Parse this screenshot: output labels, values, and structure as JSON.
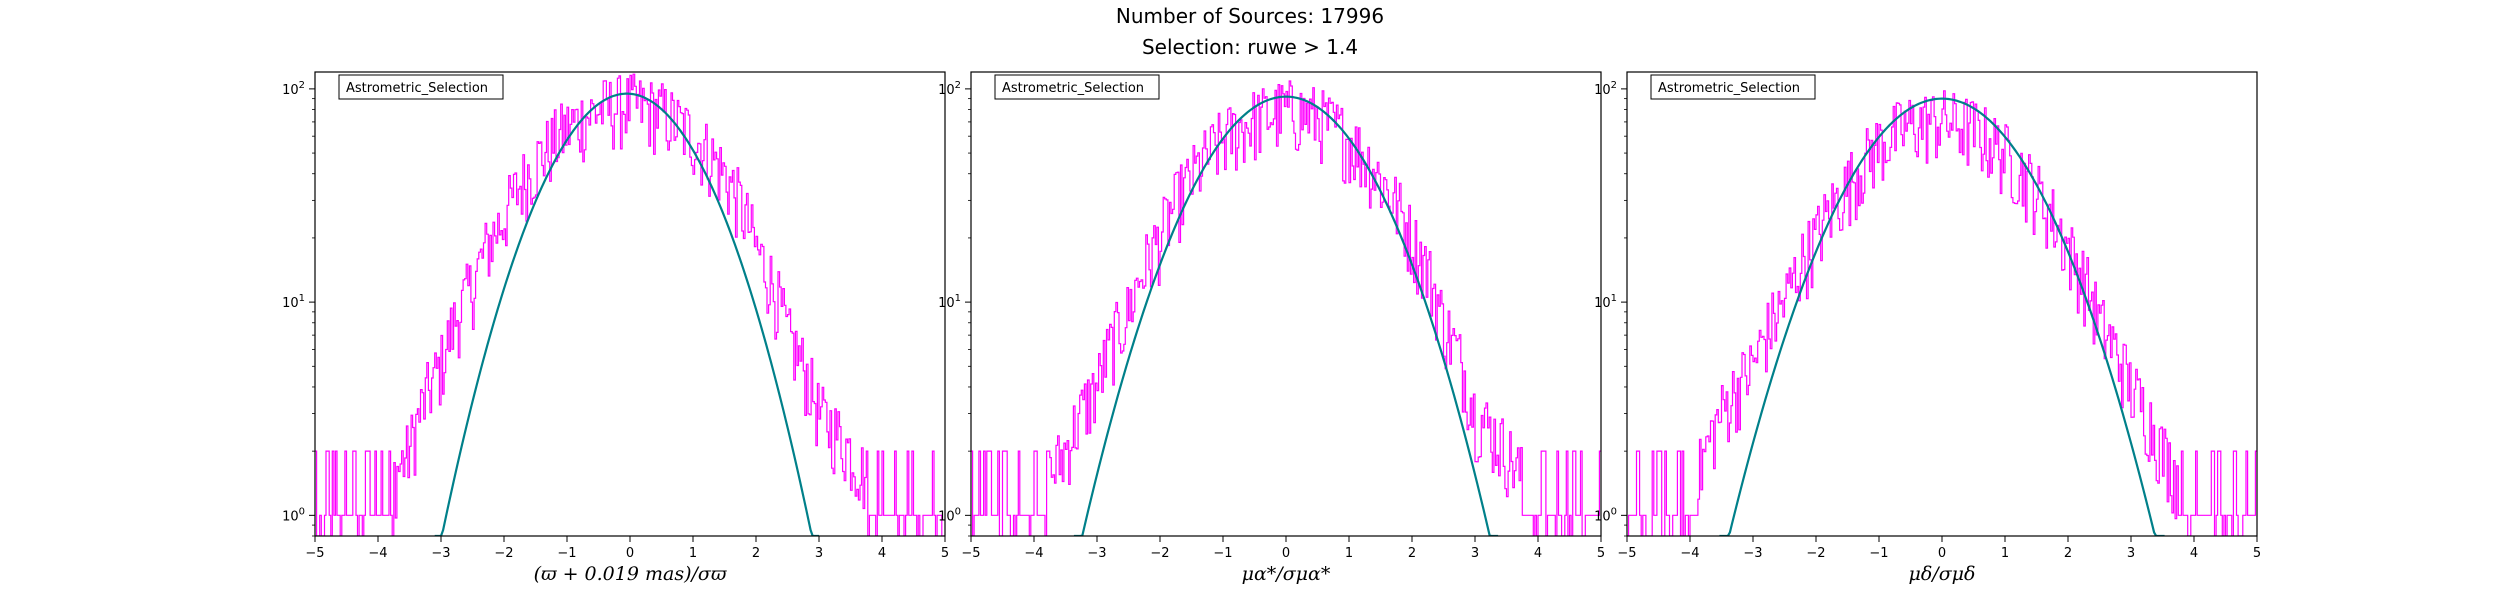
{
  "figure": {
    "title_line1": "Number of Sources: 17996",
    "title_line2": "Selection: ruwe > 1.4"
  },
  "colors": {
    "histogram": "#ff00ff",
    "gaussian": "#00808a",
    "axes": "#000000"
  },
  "chart_data": [
    {
      "type": "line",
      "xlim": [
        -5,
        5
      ],
      "ylim": [
        0.8,
        120
      ],
      "yscale": "log",
      "grid": false,
      "legend": {
        "label": "Astrometric_Selection",
        "placement": "top-left"
      },
      "x_ticks": [
        "−5",
        "−4",
        "−3",
        "−2",
        "−1",
        "0",
        "1",
        "2",
        "3",
        "4",
        "5"
      ],
      "y_ticks": [
        {
          "value": 1,
          "base": "10",
          "exp": "0"
        },
        {
          "value": 10,
          "base": "10",
          "exp": "1"
        },
        {
          "value": 100,
          "base": "10",
          "exp": "2"
        }
      ],
      "xlabel": "(ϖ + 0.019 mas)/σϖ",
      "series": [
        {
          "kind": "step-histogram",
          "x": [
            -5,
            -4.5,
            -4,
            -3.5,
            -3,
            -2.5,
            -2,
            -1.5,
            -1,
            -0.5,
            0,
            0.5,
            1,
            1.5,
            2,
            2.5,
            3,
            3.5,
            4,
            4.5,
            5
          ],
          "values": [
            1,
            1,
            1,
            2,
            5,
            12,
            25,
            45,
            65,
            80,
            85,
            78,
            60,
            40,
            18,
            7,
            3,
            2,
            1,
            1,
            1
          ]
        },
        {
          "kind": "gaussian",
          "amplitude": 95,
          "mean": -0.05,
          "sigma": 0.95
        }
      ]
    },
    {
      "type": "line",
      "xlim": [
        -5,
        5
      ],
      "ylim": [
        0.8,
        120
      ],
      "yscale": "log",
      "grid": false,
      "legend": {
        "label": "Astrometric_Selection",
        "placement": "top-left"
      },
      "x_ticks": [
        "−5",
        "−4",
        "−3",
        "−2",
        "−1",
        "0",
        "1",
        "2",
        "3",
        "4",
        "5"
      ],
      "y_ticks": [
        {
          "value": 1,
          "base": "10",
          "exp": "0"
        },
        {
          "value": 10,
          "base": "10",
          "exp": "1"
        },
        {
          "value": 100,
          "base": "10",
          "exp": "2"
        }
      ],
      "xlabel": "μα*/σμα*",
      "series": [
        {
          "kind": "step-histogram",
          "x": [
            -5,
            -4.5,
            -4,
            -3.5,
            -3,
            -2.5,
            -2,
            -1.5,
            -1,
            -0.5,
            0,
            0.5,
            1,
            1.5,
            2,
            2.5,
            3,
            3.5,
            4,
            4.5,
            5
          ],
          "values": [
            1,
            1,
            1,
            2,
            4,
            9,
            20,
            38,
            58,
            72,
            80,
            74,
            58,
            38,
            20,
            8,
            3,
            2,
            1,
            1,
            1
          ]
        },
        {
          "kind": "gaussian",
          "amplitude": 92,
          "mean": 0.0,
          "sigma": 1.05
        }
      ]
    },
    {
      "type": "line",
      "xlim": [
        -5,
        5
      ],
      "ylim": [
        0.8,
        120
      ],
      "yscale": "log",
      "grid": false,
      "legend": {
        "label": "Astrometric_Selection",
        "placement": "top-left"
      },
      "x_ticks": [
        "−5",
        "−4",
        "−3",
        "−2",
        "−1",
        "0",
        "1",
        "2",
        "3",
        "4",
        "5"
      ],
      "y_ticks": [
        {
          "value": 1,
          "base": "10",
          "exp": "0"
        },
        {
          "value": 10,
          "base": "10",
          "exp": "1"
        },
        {
          "value": 100,
          "base": "10",
          "exp": "2"
        }
      ],
      "xlabel": "μδ/σμδ",
      "series": [
        {
          "kind": "step-histogram",
          "x": [
            -5,
            -4.5,
            -4,
            -3.5,
            -3,
            -2.5,
            -2,
            -1.5,
            -1,
            -0.5,
            0,
            0.5,
            1,
            1.5,
            2,
            2.5,
            3,
            3.5,
            4,
            4.5,
            5
          ],
          "values": [
            1,
            1,
            1,
            3,
            5,
            10,
            20,
            35,
            55,
            68,
            72,
            65,
            50,
            33,
            18,
            8,
            4,
            2,
            1,
            1,
            1
          ]
        },
        {
          "kind": "gaussian",
          "amplitude": 90,
          "mean": 0.0,
          "sigma": 1.1
        }
      ]
    }
  ]
}
